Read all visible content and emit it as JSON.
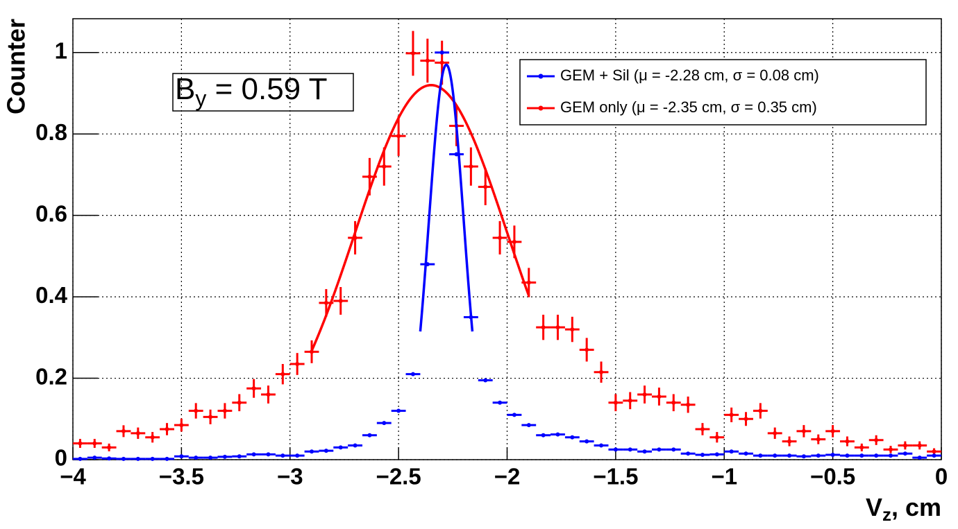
{
  "chart_data": {
    "type": "histogram",
    "ylabel": "Counter",
    "xlabel": {
      "base": "V",
      "subscript": "z",
      "text": ", cm"
    },
    "annotation": {
      "base": "B",
      "subscript": "y",
      "text": " = 0.59 T"
    },
    "xlim": [
      -4,
      0
    ],
    "ylim": [
      0,
      1.083
    ],
    "xticks": [
      {
        "value": -4,
        "label": "−4"
      },
      {
        "value": -3.5,
        "label": "−3.5"
      },
      {
        "value": -3,
        "label": "−3"
      },
      {
        "value": -2.5,
        "label": "−2.5"
      },
      {
        "value": -2,
        "label": "−2"
      },
      {
        "value": -1.5,
        "label": "−1.5"
      },
      {
        "value": -1,
        "label": "−1"
      },
      {
        "value": -0.5,
        "label": "−0.5"
      },
      {
        "value": 0,
        "label": "0"
      }
    ],
    "yticks": [
      0,
      0.2,
      0.4,
      0.6,
      0.8,
      1
    ],
    "grid": true,
    "legend": "top-right",
    "bins": [
      -4,
      -3.9333,
      -3.8667,
      -3.8,
      -3.7333,
      -3.6667,
      -3.6,
      -3.5333,
      -3.4667,
      -3.4,
      -3.3333,
      -3.2667,
      -3.2,
      -3.1333,
      -3.0667,
      -3,
      -2.9333,
      -2.8667,
      -2.8,
      -2.7333,
      -2.6667,
      -2.6,
      -2.5333,
      -2.4667,
      -2.4,
      -2.3333,
      -2.2667,
      -2.2,
      -2.1333,
      -2.0667,
      -2,
      -1.9333,
      -1.8667,
      -1.8,
      -1.7333,
      -1.6667,
      -1.6,
      -1.5333,
      -1.4667,
      -1.4,
      -1.3333,
      -1.2667,
      -1.2,
      -1.1333,
      -1.0667,
      -1,
      -0.9333,
      -0.8667,
      -0.8,
      -0.7333,
      -0.6667,
      -0.6,
      -0.5333,
      -0.4667,
      -0.4,
      -0.3333,
      -0.2667,
      -0.2,
      -0.1333,
      -0.0667,
      0
    ],
    "series": [
      {
        "name": "GEM + Sil (μ = -2.28 cm, σ = 0.08 cm)",
        "color": "#0000ff",
        "values": [
          0.002,
          0.005,
          0.003,
          0.002,
          0.002,
          0.002,
          0.002,
          0.008,
          0.005,
          0.005,
          0.007,
          0.008,
          0.013,
          0.013,
          0.01,
          0.01,
          0.02,
          0.022,
          0.03,
          0.035,
          0.06,
          0.09,
          0.12,
          0.21,
          0.48,
          1.0,
          0.75,
          0.35,
          0.195,
          0.14,
          0.11,
          0.085,
          0.06,
          0.062,
          0.055,
          0.045,
          0.035,
          0.025,
          0.025,
          0.02,
          0.025,
          0.025,
          0.015,
          0.012,
          0.013,
          0.02,
          0.015,
          0.01,
          0.01,
          0.01,
          0.008,
          0.01,
          0.012,
          0.01,
          0.01,
          0.01,
          0.01,
          0.015,
          0.005,
          0.01
        ],
        "fit": {
          "amplitude": 0.97,
          "mean": -2.28,
          "sigma": 0.08,
          "range": [
            -2.4,
            -2.16
          ]
        }
      },
      {
        "name": "GEM only (μ = -2.35 cm, σ = 0.35 cm)",
        "color": "#ff0000",
        "values": [
          0.04,
          0.04,
          0.03,
          0.07,
          0.065,
          0.055,
          0.075,
          0.085,
          0.12,
          0.105,
          0.12,
          0.14,
          0.175,
          0.16,
          0.21,
          0.235,
          0.265,
          0.385,
          0.39,
          0.545,
          0.695,
          0.72,
          0.795,
          0.998,
          0.98,
          0.975,
          0.82,
          0.72,
          0.67,
          0.545,
          0.535,
          0.435,
          0.325,
          0.325,
          0.32,
          0.27,
          0.215,
          0.14,
          0.145,
          0.16,
          0.155,
          0.14,
          0.135,
          0.075,
          0.055,
          0.11,
          0.1,
          0.12,
          0.065,
          0.045,
          0.07,
          0.05,
          0.07,
          0.045,
          0.03,
          0.048,
          0.025,
          0.035,
          0.035,
          0.02
        ],
        "errors": [
          0.011,
          0.011,
          0.0095,
          0.0145,
          0.014,
          0.013,
          0.015,
          0.016,
          0.019,
          0.018,
          0.019,
          0.021,
          0.023,
          0.022,
          0.025,
          0.027,
          0.028,
          0.034,
          0.034,
          0.041,
          0.046,
          0.047,
          0.049,
          0.055,
          0.054,
          0.054,
          0.05,
          0.047,
          0.045,
          0.041,
          0.04,
          0.036,
          0.031,
          0.031,
          0.031,
          0.029,
          0.026,
          0.021,
          0.021,
          0.022,
          0.022,
          0.021,
          0.02,
          0.015,
          0.013,
          0.018,
          0.017,
          0.019,
          0.014,
          0.012,
          0.015,
          0.012,
          0.015,
          0.012,
          0.0095,
          0.012,
          0.009,
          0.01,
          0.01,
          0.008
        ],
        "fit": {
          "amplitude": 0.92,
          "mean": -2.35,
          "sigma": 0.35,
          "range": [
            -2.9,
            -1.9
          ]
        }
      }
    ]
  }
}
